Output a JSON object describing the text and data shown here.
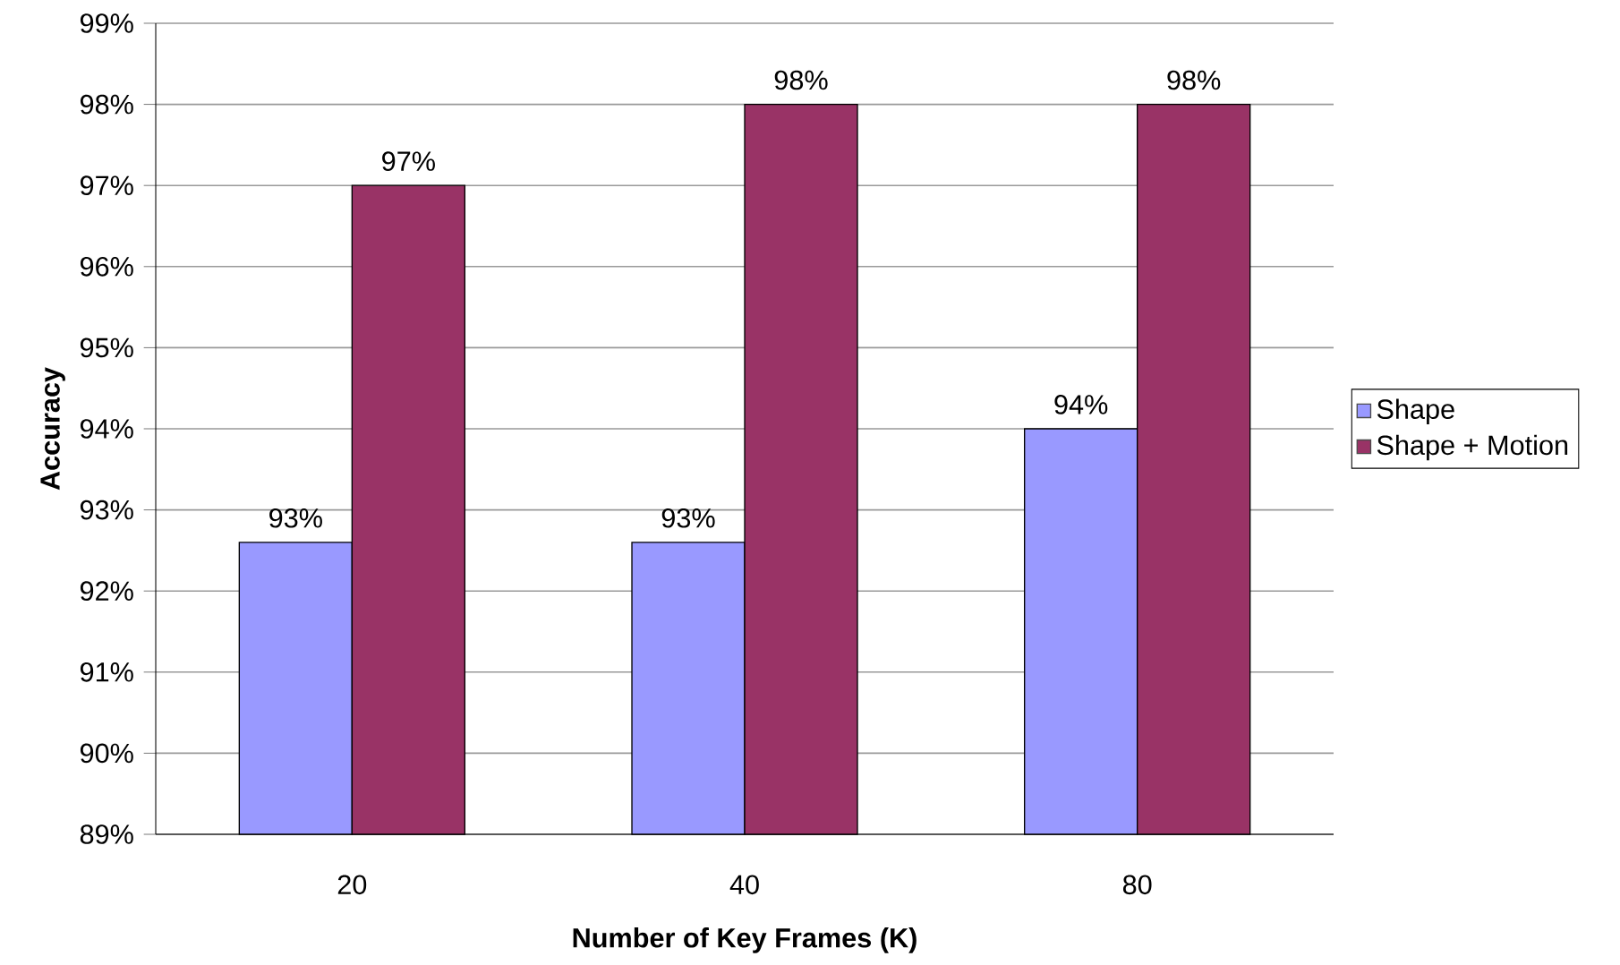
{
  "chart_data": {
    "type": "bar",
    "xlabel": "Number of Key Frames (K)",
    "ylabel": "Accuracy",
    "categories": [
      "20",
      "40",
      "80"
    ],
    "series": [
      {
        "name": "Shape",
        "color": "#9999ff",
        "values": [
          92.6,
          92.6,
          94.0
        ],
        "value_labels": [
          "93%",
          "93%",
          "94%"
        ]
      },
      {
        "name": "Shape + Motion",
        "color": "#993366",
        "values": [
          97,
          98,
          98
        ],
        "value_labels": [
          "97%",
          "98%",
          "98%"
        ]
      }
    ],
    "ylim": [
      89,
      99
    ],
    "yticks": [
      {
        "value": 89,
        "label": "89%"
      },
      {
        "value": 90,
        "label": "90%"
      },
      {
        "value": 91,
        "label": "91%"
      },
      {
        "value": 92,
        "label": "92%"
      },
      {
        "value": 93,
        "label": "93%"
      },
      {
        "value": 94,
        "label": "94%"
      },
      {
        "value": 95,
        "label": "95%"
      },
      {
        "value": 96,
        "label": "96%"
      },
      {
        "value": 97,
        "label": "97%"
      },
      {
        "value": 98,
        "label": "98%"
      },
      {
        "value": 99,
        "label": "99%"
      }
    ],
    "grid": "y",
    "legend": "right"
  }
}
